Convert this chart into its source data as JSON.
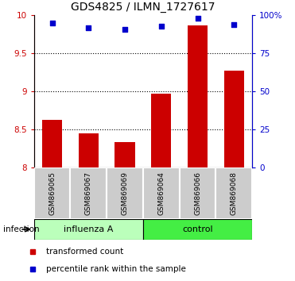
{
  "title": "GDS4825 / ILMN_1727617",
  "samples": [
    "GSM869065",
    "GSM869067",
    "GSM869069",
    "GSM869064",
    "GSM869066",
    "GSM869068"
  ],
  "transformed_counts": [
    8.62,
    8.45,
    8.33,
    8.97,
    9.87,
    9.27
  ],
  "percentile_ranks": [
    95,
    92,
    91,
    93,
    98,
    94
  ],
  "ylim_left": [
    8.0,
    10.0
  ],
  "ylim_right": [
    0,
    100
  ],
  "yticks_left": [
    8.0,
    8.5,
    9.0,
    9.5,
    10.0
  ],
  "ytick_labels_left": [
    "8",
    "8.5",
    "9",
    "9.5",
    "10"
  ],
  "yticks_right": [
    0,
    25,
    50,
    75,
    100
  ],
  "ytick_labels_right": [
    "0",
    "25",
    "50",
    "75",
    "100%"
  ],
  "bar_color": "#cc0000",
  "dot_color": "#0000cc",
  "bar_width": 0.55,
  "group_label": "infection",
  "legend_bar_label": "transformed count",
  "legend_dot_label": "percentile rank within the sample",
  "title_fontsize": 10,
  "tick_fontsize": 7.5,
  "sample_box_color": "#cccccc",
  "influenza_color": "#bbffbb",
  "control_color": "#44ee44",
  "dotted_lines": [
    8.5,
    9.0,
    9.5
  ],
  "fig_width": 3.71,
  "fig_height": 3.54,
  "dpi": 100
}
